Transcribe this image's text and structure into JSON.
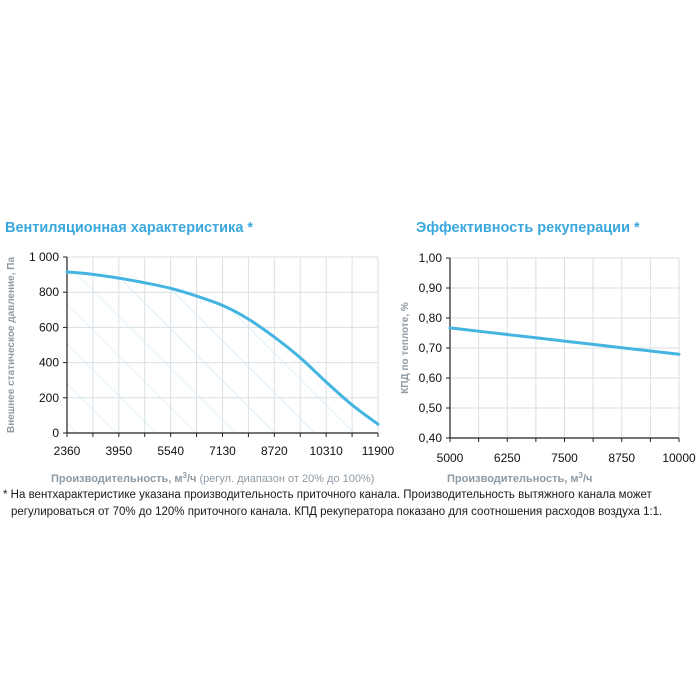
{
  "colors": {
    "line": "#44b4e0",
    "title": "#3aa8dc",
    "grid": "#d9dfe4",
    "hatch": "#c3e7f5",
    "axis": "#222222",
    "label": "#8f9aa3"
  },
  "note": {
    "line1": "* На вентхарактеристике указана производительность приточного канала. Производительность вытяжного канала может",
    "line2": "регулироваться от 70% до 120% приточного канала. КПД рекуператора показано для соотношения расходов воздуха 1:1."
  },
  "chart_data": [
    {
      "type": "line",
      "title": "Вентиляционная характеристика *",
      "xlabel_main": "Производительность, м",
      "xlabel_sup": "3",
      "xlabel_unit": "/ч",
      "xlabel_note": " (регул. диапазон от 20% до 100%)",
      "ylabel": "Внешнее статическое давление, Па",
      "xlim": [
        2360,
        11900
      ],
      "ylim": [
        0,
        1000
      ],
      "x_ticks": [
        2360,
        3950,
        5540,
        7130,
        8720,
        10310,
        11900
      ],
      "x_tick_labels": [
        "2360",
        "3950",
        "5540",
        "7130",
        "8720",
        "10310",
        "11900"
      ],
      "y_ticks": [
        0,
        200,
        400,
        600,
        800,
        1000
      ],
      "y_tick_labels": [
        "0",
        "200",
        "400",
        "600",
        "800",
        "1 000"
      ],
      "hatched_area": true,
      "series": [
        {
          "name": "Вентиляционная характеристика",
          "x": [
            2360,
            3000,
            3950,
            4700,
            5540,
            6300,
            7130,
            7900,
            8720,
            9500,
            10310,
            11100,
            11900
          ],
          "y": [
            915,
            905,
            880,
            855,
            822,
            780,
            725,
            650,
            545,
            430,
            290,
            160,
            50
          ]
        }
      ]
    },
    {
      "type": "line",
      "title": "Эффективность рекуперации *",
      "xlabel_main": "Производительность, м",
      "xlabel_sup": "3",
      "xlabel_unit": "/ч",
      "xlabel_note": "",
      "ylabel": "КПД по теплоте, %",
      "xlim": [
        5000,
        10000
      ],
      "ylim": [
        0.4,
        1.0
      ],
      "x_ticks": [
        5000,
        6250,
        7500,
        8750,
        10000
      ],
      "x_tick_labels": [
        "5000",
        "6250",
        "7500",
        "8750",
        "10000"
      ],
      "y_ticks": [
        0.4,
        0.5,
        0.6,
        0.7,
        0.8,
        0.9,
        1.0
      ],
      "y_tick_labels": [
        "0,40",
        "0,50",
        "0,60",
        "0,70",
        "0,80",
        "0,90",
        "1,00"
      ],
      "hatched_area": false,
      "series": [
        {
          "name": "КПД по теплоте",
          "x": [
            5000,
            6250,
            7500,
            8750,
            10000
          ],
          "y": [
            0.767,
            0.745,
            0.723,
            0.701,
            0.679
          ]
        }
      ]
    }
  ]
}
